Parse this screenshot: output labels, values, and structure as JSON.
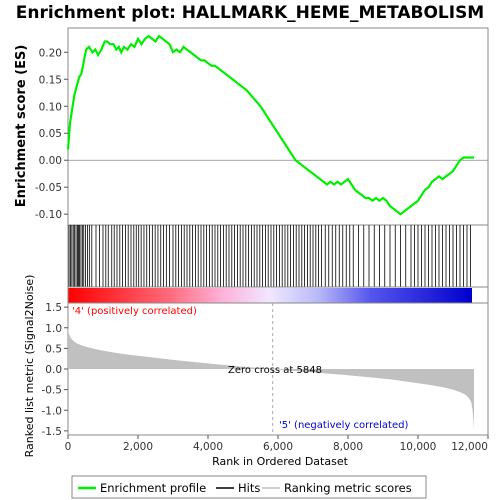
{
  "title": "Enrichment plot: HALLMARK_HEME_METABOLISM",
  "colors": {
    "enrichment_line": "#00ee00",
    "hits": "#000000",
    "metric_fill": "#c0c0c0",
    "positive_text": "#ff0000",
    "negative_text": "#0000cc",
    "zero_line": "#888888"
  },
  "chart_data": [
    {
      "type": "line",
      "name": "enrichment",
      "ylabel": "Enrichment score (ES)",
      "xlim": [
        0,
        12000
      ],
      "ylim": [
        -0.12,
        0.245
      ],
      "yticks": [
        -0.1,
        -0.05,
        0.0,
        0.05,
        0.1,
        0.15,
        0.2
      ],
      "ytick_labels": [
        "-0.10",
        "-0.05",
        "0.00",
        "0.05",
        "0.10",
        "0.15",
        "0.20"
      ],
      "x": [
        0,
        60,
        120,
        180,
        260,
        330,
        380,
        430,
        470,
        520,
        600,
        700,
        780,
        860,
        950,
        1050,
        1120,
        1200,
        1300,
        1380,
        1450,
        1520,
        1600,
        1700,
        1800,
        1900,
        2000,
        2100,
        2200,
        2300,
        2400,
        2500,
        2600,
        2700,
        2800,
        2900,
        3000,
        3100,
        3200,
        3300,
        3400,
        3500,
        3600,
        3700,
        3800,
        3900,
        4000,
        4100,
        4200,
        4300,
        4400,
        4500,
        4700,
        4900,
        5100,
        5300,
        5500,
        5700,
        5900,
        6100,
        6300,
        6500,
        6700,
        6900,
        7100,
        7300,
        7400,
        7500,
        7600,
        7700,
        7800,
        7900,
        8000,
        8100,
        8200,
        8300,
        8400,
        8500,
        8600,
        8700,
        8800,
        8900,
        9000,
        9100,
        9200,
        9300,
        9400,
        9500,
        9600,
        9700,
        9800,
        9900,
        10000,
        10100,
        10200,
        10300,
        10400,
        10500,
        10600,
        10700,
        10800,
        10900,
        11000,
        11100,
        11200,
        11300,
        11400,
        11500,
        11600
      ],
      "series": [
        {
          "name": "Enrichment profile",
          "values": [
            0.02,
            0.07,
            0.095,
            0.12,
            0.14,
            0.155,
            0.16,
            0.175,
            0.19,
            0.205,
            0.21,
            0.2,
            0.205,
            0.195,
            0.205,
            0.22,
            0.22,
            0.215,
            0.215,
            0.205,
            0.21,
            0.2,
            0.21,
            0.205,
            0.215,
            0.21,
            0.225,
            0.215,
            0.225,
            0.23,
            0.225,
            0.22,
            0.23,
            0.225,
            0.22,
            0.215,
            0.2,
            0.205,
            0.2,
            0.21,
            0.205,
            0.2,
            0.195,
            0.19,
            0.185,
            0.185,
            0.18,
            0.175,
            0.175,
            0.17,
            0.165,
            0.16,
            0.15,
            0.14,
            0.13,
            0.115,
            0.1,
            0.08,
            0.06,
            0.04,
            0.02,
            0.0,
            -0.01,
            -0.02,
            -0.03,
            -0.04,
            -0.045,
            -0.04,
            -0.045,
            -0.04,
            -0.045,
            -0.04,
            -0.035,
            -0.045,
            -0.055,
            -0.06,
            -0.065,
            -0.07,
            -0.07,
            -0.075,
            -0.07,
            -0.075,
            -0.07,
            -0.075,
            -0.085,
            -0.09,
            -0.095,
            -0.1,
            -0.095,
            -0.09,
            -0.085,
            -0.08,
            -0.075,
            -0.065,
            -0.055,
            -0.05,
            -0.04,
            -0.035,
            -0.03,
            -0.035,
            -0.03,
            -0.025,
            -0.02,
            -0.01,
            0.0,
            0.005,
            0.005,
            0.005,
            0.005
          ]
        }
      ]
    },
    {
      "type": "scatter",
      "name": "hits",
      "xlim": [
        0,
        12000
      ],
      "hit_positions": [
        30,
        70,
        110,
        150,
        190,
        230,
        270,
        300,
        330,
        370,
        410,
        450,
        500,
        560,
        610,
        680,
        800,
        900,
        1000,
        1080,
        1150,
        1250,
        1320,
        1400,
        1480,
        1560,
        1640,
        1720,
        1800,
        1880,
        1950,
        2020,
        2090,
        2170,
        2250,
        2330,
        2410,
        2490,
        2570,
        2650,
        2730,
        2810,
        2900,
        3000,
        3080,
        3160,
        3240,
        3320,
        3400,
        3480,
        3560,
        3640,
        3720,
        3800,
        3880,
        3960,
        4040,
        4120,
        4200,
        4280,
        4360,
        4440,
        4520,
        4600,
        4680,
        4760,
        4840,
        4920,
        5000,
        5080,
        5160,
        5240,
        5320,
        5400,
        5480,
        5560,
        5640,
        5720,
        5800,
        5880,
        5960,
        6040,
        6120,
        6200,
        6280,
        6360,
        6440,
        6520,
        6600,
        6680,
        6760,
        6840,
        6920,
        7000,
        7080,
        7160,
        7240,
        7350,
        7450,
        7550,
        7650,
        7750,
        7850,
        7950,
        8050,
        8150,
        8300,
        8450,
        8600,
        8750,
        8900,
        9050,
        9200,
        9350,
        9500,
        9650,
        9800,
        9900,
        10000,
        10100,
        10200,
        10300,
        10400,
        10500,
        10600,
        10700,
        10800,
        10900,
        11000,
        11100,
        11200,
        11300,
        11400,
        11500
      ]
    },
    {
      "type": "area",
      "name": "ranked_metric",
      "xlabel": "Rank in Ordered Dataset",
      "ylabel": "Ranked list metric (Signal2Noise)",
      "xlim": [
        0,
        12000
      ],
      "ylim": [
        -1.6,
        1.6
      ],
      "xticks": [
        0,
        2000,
        4000,
        6000,
        8000,
        10000,
        12000
      ],
      "xtick_labels": [
        "0",
        "2,000",
        "4,000",
        "6,000",
        "8,000",
        "10,000",
        "12,000"
      ],
      "yticks": [
        -1.5,
        -1.0,
        -0.5,
        0.0,
        0.5,
        1.0,
        1.5
      ],
      "ytick_labels": [
        "-1.5",
        "-1.0",
        "-0.5",
        "0.0",
        "0.5",
        "1.0",
        "1.5"
      ],
      "x": [
        0,
        30,
        80,
        150,
        250,
        400,
        600,
        900,
        1300,
        1800,
        2400,
        3000,
        3600,
        4200,
        4800,
        5400,
        5848,
        6200,
        6800,
        7400,
        8000,
        8600,
        9200,
        9800,
        10300,
        10700,
        11000,
        11200,
        11350,
        11450,
        11520,
        11560,
        11600
      ],
      "values": [
        1.0,
        0.85,
        0.75,
        0.68,
        0.62,
        0.57,
        0.52,
        0.46,
        0.4,
        0.34,
        0.28,
        0.22,
        0.17,
        0.12,
        0.07,
        0.03,
        0.0,
        -0.03,
        -0.07,
        -0.11,
        -0.15,
        -0.2,
        -0.25,
        -0.32,
        -0.38,
        -0.44,
        -0.5,
        -0.56,
        -0.62,
        -0.7,
        -0.8,
        -1.0,
        -1.45
      ]
    }
  ],
  "annotations": {
    "positive_label": "'4' (positively correlated)",
    "negative_label": "'5' (negatively correlated)",
    "zero_cross": "Zero cross at 5848",
    "zero_cross_rank": 5848
  },
  "legend": [
    {
      "label": "Enrichment profile",
      "color": "#00ee00"
    },
    {
      "label": "Hits",
      "color": "#000000"
    },
    {
      "label": "Ranking metric scores",
      "color": "#c0c0c0"
    }
  ]
}
